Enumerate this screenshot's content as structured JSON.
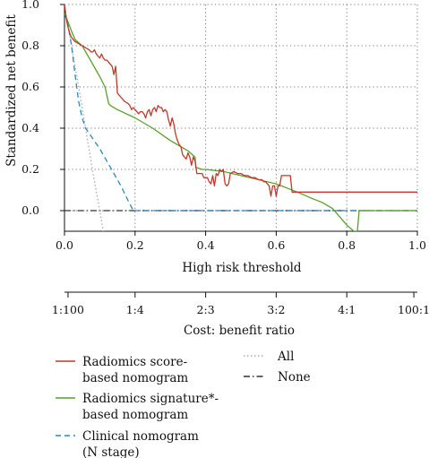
{
  "chart_data": {
    "type": "line",
    "xlabel": "High risk threshold",
    "ylabel": "Standardized net benefit",
    "xlim": [
      0.0,
      1.0
    ],
    "ylim": [
      -0.1,
      1.0
    ],
    "x_ticks": [
      "0.0",
      "0.2",
      "0.4",
      "0.6",
      "0.8",
      "1.0"
    ],
    "y_ticks": [
      "0.0",
      "0.2",
      "0.4",
      "0.6",
      "0.8",
      "1.0"
    ],
    "grid": "dotted",
    "cost_benefit_axis": {
      "label": "Cost: benefit ratio",
      "ticks": [
        "1:100",
        "1:4",
        "2:3",
        "3:2",
        "4:1",
        "100:1"
      ],
      "thresholds": [
        0.01,
        0.2,
        0.4,
        0.6,
        0.8,
        0.99
      ]
    },
    "series": [
      {
        "name": "Radiomics score-based nomogram",
        "label_lines": [
          "Radiomics score-",
          "based nomogram"
        ],
        "color": "#c0392b",
        "style": "solid",
        "points": [
          [
            0.0,
            1.0
          ],
          [
            0.005,
            0.93
          ],
          [
            0.01,
            0.89
          ],
          [
            0.015,
            0.86
          ],
          [
            0.02,
            0.84
          ],
          [
            0.03,
            0.82
          ],
          [
            0.04,
            0.81
          ],
          [
            0.05,
            0.8
          ],
          [
            0.06,
            0.79
          ],
          [
            0.07,
            0.78
          ],
          [
            0.075,
            0.77
          ],
          [
            0.08,
            0.77
          ],
          [
            0.085,
            0.78
          ],
          [
            0.09,
            0.76
          ],
          [
            0.095,
            0.75
          ],
          [
            0.1,
            0.74
          ],
          [
            0.105,
            0.76
          ],
          [
            0.11,
            0.74
          ],
          [
            0.115,
            0.73
          ],
          [
            0.12,
            0.73
          ],
          [
            0.125,
            0.72
          ],
          [
            0.13,
            0.71
          ],
          [
            0.135,
            0.7
          ],
          [
            0.14,
            0.66
          ],
          [
            0.145,
            0.7
          ],
          [
            0.15,
            0.57
          ],
          [
            0.16,
            0.55
          ],
          [
            0.17,
            0.53
          ],
          [
            0.18,
            0.52
          ],
          [
            0.185,
            0.51
          ],
          [
            0.19,
            0.49
          ],
          [
            0.195,
            0.5
          ],
          [
            0.2,
            0.49
          ],
          [
            0.205,
            0.48
          ],
          [
            0.21,
            0.47
          ],
          [
            0.215,
            0.48
          ],
          [
            0.22,
            0.48
          ],
          [
            0.225,
            0.47
          ],
          [
            0.23,
            0.45
          ],
          [
            0.235,
            0.48
          ],
          [
            0.24,
            0.49
          ],
          [
            0.245,
            0.46
          ],
          [
            0.25,
            0.49
          ],
          [
            0.255,
            0.5
          ],
          [
            0.26,
            0.48
          ],
          [
            0.265,
            0.51
          ],
          [
            0.27,
            0.5
          ],
          [
            0.275,
            0.5
          ],
          [
            0.28,
            0.48
          ],
          [
            0.285,
            0.49
          ],
          [
            0.29,
            0.48
          ],
          [
            0.295,
            0.44
          ],
          [
            0.3,
            0.41
          ],
          [
            0.305,
            0.45
          ],
          [
            0.31,
            0.42
          ],
          [
            0.315,
            0.37
          ],
          [
            0.32,
            0.34
          ],
          [
            0.325,
            0.32
          ],
          [
            0.33,
            0.31
          ],
          [
            0.335,
            0.27
          ],
          [
            0.34,
            0.26
          ],
          [
            0.345,
            0.25
          ],
          [
            0.35,
            0.28
          ],
          [
            0.355,
            0.26
          ],
          [
            0.36,
            0.22
          ],
          [
            0.365,
            0.26
          ],
          [
            0.37,
            0.24
          ],
          [
            0.375,
            0.18
          ],
          [
            0.385,
            0.18
          ],
          [
            0.39,
            0.18
          ],
          [
            0.395,
            0.16
          ],
          [
            0.4,
            0.16
          ],
          [
            0.405,
            0.16
          ],
          [
            0.41,
            0.14
          ],
          [
            0.415,
            0.13
          ],
          [
            0.42,
            0.17
          ],
          [
            0.425,
            0.12
          ],
          [
            0.43,
            0.18
          ],
          [
            0.435,
            0.17
          ],
          [
            0.44,
            0.2
          ],
          [
            0.445,
            0.19
          ],
          [
            0.45,
            0.2
          ],
          [
            0.455,
            0.13
          ],
          [
            0.46,
            0.12
          ],
          [
            0.465,
            0.13
          ],
          [
            0.47,
            0.18
          ],
          [
            0.48,
            0.19
          ],
          [
            0.49,
            0.18
          ],
          [
            0.5,
            0.18
          ],
          [
            0.51,
            0.17
          ],
          [
            0.52,
            0.17
          ],
          [
            0.53,
            0.16
          ],
          [
            0.54,
            0.16
          ],
          [
            0.55,
            0.15
          ],
          [
            0.56,
            0.15
          ],
          [
            0.565,
            0.14
          ],
          [
            0.57,
            0.14
          ],
          [
            0.575,
            0.13
          ],
          [
            0.58,
            0.12
          ],
          [
            0.585,
            0.07
          ],
          [
            0.59,
            0.12
          ],
          [
            0.595,
            0.12
          ],
          [
            0.6,
            0.07
          ],
          [
            0.605,
            0.12
          ],
          [
            0.61,
            0.12
          ],
          [
            0.615,
            0.17
          ],
          [
            0.64,
            0.17
          ],
          [
            0.645,
            0.09
          ],
          [
            0.66,
            0.09
          ],
          [
            1.0,
            0.09
          ]
        ]
      },
      {
        "name": "Radiomics signature*-based nomogram",
        "label_lines": [
          "Radiomics signature*-",
          "based nomogram"
        ],
        "color": "#5aa02c",
        "style": "solid",
        "points": [
          [
            0.0,
            0.96
          ],
          [
            0.02,
            0.87
          ],
          [
            0.03,
            0.83
          ],
          [
            0.05,
            0.8
          ],
          [
            0.07,
            0.74
          ],
          [
            0.1,
            0.65
          ],
          [
            0.115,
            0.6
          ],
          [
            0.12,
            0.56
          ],
          [
            0.125,
            0.52
          ],
          [
            0.13,
            0.51
          ],
          [
            0.15,
            0.49
          ],
          [
            0.2,
            0.45
          ],
          [
            0.25,
            0.4
          ],
          [
            0.3,
            0.34
          ],
          [
            0.33,
            0.31
          ],
          [
            0.35,
            0.29
          ],
          [
            0.37,
            0.26
          ],
          [
            0.372,
            0.21
          ],
          [
            0.39,
            0.2
          ],
          [
            0.4,
            0.2
          ],
          [
            0.45,
            0.19
          ],
          [
            0.5,
            0.17
          ],
          [
            0.55,
            0.15
          ],
          [
            0.6,
            0.13
          ],
          [
            0.63,
            0.11
          ],
          [
            0.66,
            0.09
          ],
          [
            0.7,
            0.06
          ],
          [
            0.73,
            0.04
          ],
          [
            0.76,
            0.01
          ],
          [
            0.78,
            -0.03
          ],
          [
            0.8,
            -0.07
          ],
          [
            0.82,
            -0.1
          ],
          [
            0.83,
            -0.1
          ],
          [
            0.835,
            0.0
          ],
          [
            1.0,
            0.0
          ]
        ]
      },
      {
        "name": "Clinical nomogram (N stage)",
        "label_lines": [
          "Clinical nomogram",
          "(N stage)"
        ],
        "color": "#2e86c1",
        "style": "dashed",
        "points": [
          [
            0.0,
            0.96
          ],
          [
            0.01,
            0.9
          ],
          [
            0.02,
            0.8
          ],
          [
            0.03,
            0.66
          ],
          [
            0.04,
            0.53
          ],
          [
            0.05,
            0.45
          ],
          [
            0.06,
            0.4
          ],
          [
            0.08,
            0.35
          ],
          [
            0.1,
            0.3
          ],
          [
            0.12,
            0.24
          ],
          [
            0.14,
            0.18
          ],
          [
            0.16,
            0.12
          ],
          [
            0.18,
            0.05
          ],
          [
            0.195,
            0.0
          ],
          [
            1.0,
            0.0
          ]
        ]
      },
      {
        "name": "All",
        "label_lines": [
          "All"
        ],
        "color": "#aaaaaa",
        "style": "dotted",
        "points": [
          [
            0.0,
            1.0
          ],
          [
            0.02,
            0.8
          ],
          [
            0.04,
            0.6
          ],
          [
            0.06,
            0.4
          ],
          [
            0.08,
            0.19
          ],
          [
            0.1,
            0.0
          ],
          [
            0.11,
            -0.1
          ]
        ]
      },
      {
        "name": "None",
        "label_lines": [
          "None"
        ],
        "color": "#333333",
        "style": "dashdot",
        "points": [
          [
            0.0,
            0.0
          ],
          [
            1.0,
            0.0
          ]
        ]
      }
    ]
  }
}
